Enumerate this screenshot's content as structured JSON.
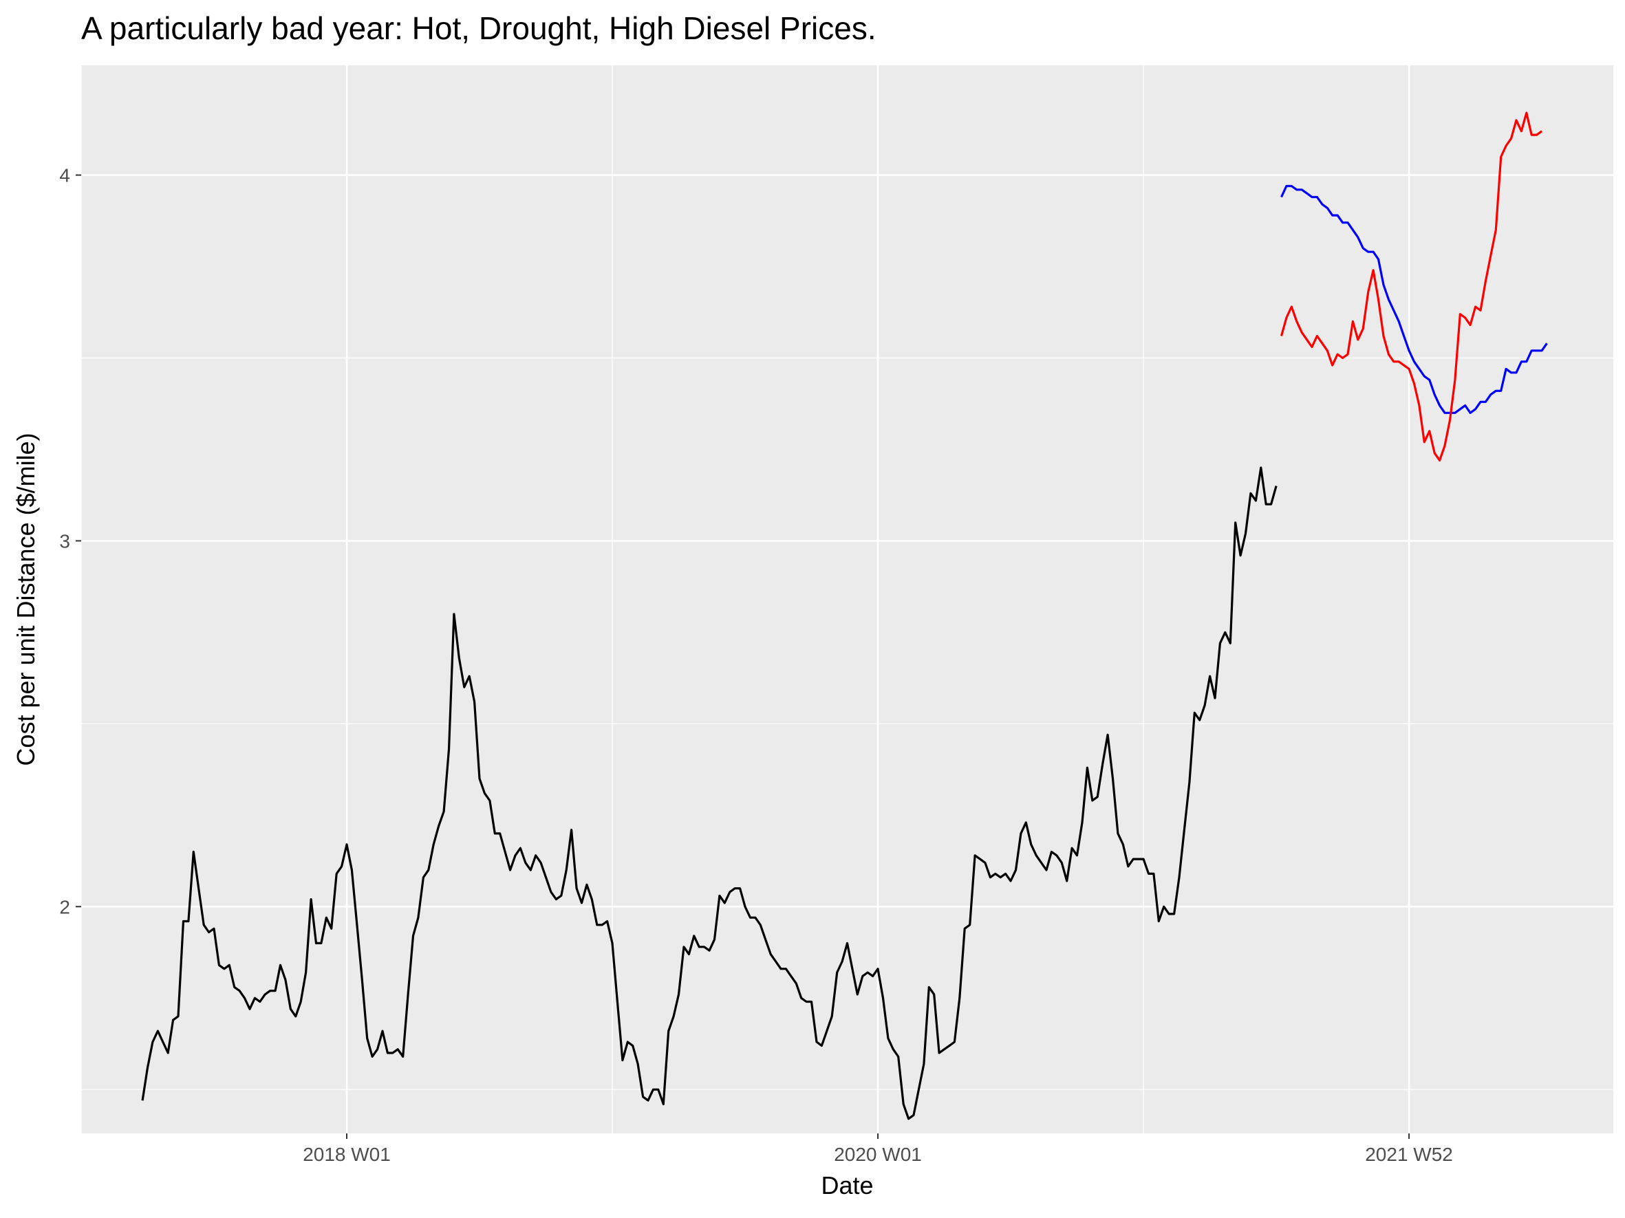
{
  "chart_data": {
    "type": "line",
    "title": "A particularly bad year: Hot, Drought, High Diesel Prices.",
    "xlabel": "Date",
    "ylabel": "Cost per unit Distance ($/mile)",
    "x_tick_labels": [
      "2018 W01",
      "2020 W01",
      "2021 W52"
    ],
    "y_tick_labels": [
      "2",
      "3",
      "4"
    ],
    "x_tick_weeks": [
      0,
      104,
      208
    ],
    "y_ticks": [
      2,
      3,
      4
    ],
    "xlim_weeks": [
      -52,
      248
    ],
    "ylim": [
      1.38,
      4.3
    ],
    "grid": true,
    "legend": "none",
    "x_unit": "ISO week",
    "background": "#ebebeb",
    "gridline_color": "#ffffff",
    "series": [
      {
        "color": "#000000",
        "x_start_week": -40,
        "y": [
          1.47,
          1.56,
          1.63,
          1.66,
          1.63,
          1.6,
          1.69,
          1.7,
          1.96,
          1.96,
          2.15,
          2.05,
          1.95,
          1.93,
          1.94,
          1.84,
          1.83,
          1.84,
          1.78,
          1.77,
          1.75,
          1.72,
          1.75,
          1.74,
          1.76,
          1.77,
          1.77,
          1.84,
          1.8,
          1.72,
          1.7,
          1.74,
          1.82,
          2.02,
          1.9,
          1.9,
          1.97,
          1.94,
          2.09,
          2.11,
          2.17,
          2.1,
          1.95,
          1.8,
          1.64,
          1.59,
          1.61,
          1.66,
          1.6,
          1.6,
          1.61,
          1.59,
          1.76,
          1.92,
          1.97,
          2.08,
          2.1,
          2.17,
          2.22,
          2.26,
          2.43,
          2.8,
          2.68,
          2.6,
          2.63,
          2.56,
          2.35,
          2.31,
          2.29,
          2.2,
          2.2,
          2.15,
          2.1,
          2.14,
          2.16,
          2.12,
          2.1,
          2.14,
          2.12,
          2.08,
          2.04,
          2.02,
          2.03,
          2.1,
          2.21,
          2.05,
          2.01,
          2.06,
          2.02,
          1.95,
          1.95,
          1.96,
          1.9,
          1.74,
          1.58,
          1.63,
          1.62,
          1.57,
          1.48,
          1.47,
          1.5,
          1.5,
          1.46,
          1.66,
          1.7,
          1.76,
          1.89,
          1.87,
          1.92,
          1.89,
          1.89,
          1.88,
          1.91,
          2.03,
          2.01,
          2.04,
          2.05,
          2.05,
          2.0,
          1.97,
          1.97,
          1.95,
          1.91,
          1.87,
          1.85,
          1.83,
          1.83,
          1.81,
          1.79,
          1.75,
          1.74,
          1.74,
          1.63,
          1.62,
          1.66,
          1.7,
          1.82,
          1.85,
          1.9,
          1.83,
          1.76,
          1.81,
          1.82,
          1.81,
          1.83,
          1.75,
          1.64,
          1.61,
          1.59,
          1.46,
          1.42,
          1.43,
          1.5,
          1.57,
          1.78,
          1.76,
          1.6,
          1.61,
          1.62,
          1.63,
          1.75,
          1.94,
          1.95,
          2.14,
          2.13,
          2.12,
          2.08,
          2.09,
          2.08,
          2.09,
          2.07,
          2.1,
          2.2,
          2.23,
          2.17,
          2.14,
          2.12,
          2.1,
          2.15,
          2.14,
          2.12,
          2.07,
          2.16,
          2.14,
          2.23,
          2.38,
          2.29,
          2.3,
          2.39,
          2.47,
          2.35,
          2.2,
          2.17,
          2.11,
          2.13,
          2.13,
          2.13,
          2.09,
          2.09,
          1.96,
          2.0,
          1.98,
          1.98,
          2.08,
          2.21,
          2.34,
          2.53,
          2.51,
          2.55,
          2.63,
          2.57,
          2.72,
          2.75,
          2.72,
          3.05,
          2.96,
          3.02,
          3.13,
          3.11,
          3.2,
          3.1,
          3.1,
          3.15
        ]
      },
      {
        "color": "#0000ff",
        "x_start_week": 183,
        "y": [
          3.94,
          3.97,
          3.97,
          3.96,
          3.96,
          3.95,
          3.94,
          3.94,
          3.92,
          3.91,
          3.89,
          3.89,
          3.87,
          3.87,
          3.85,
          3.83,
          3.8,
          3.79,
          3.79,
          3.77,
          3.7,
          3.66,
          3.63,
          3.6,
          3.56,
          3.52,
          3.49,
          3.47,
          3.45,
          3.44,
          3.4,
          3.37,
          3.35,
          3.35,
          3.35,
          3.36,
          3.37,
          3.35,
          3.36,
          3.38,
          3.38,
          3.4,
          3.41,
          3.41,
          3.47,
          3.46,
          3.46,
          3.49,
          3.49,
          3.52,
          3.52,
          3.52,
          3.54
        ]
      },
      {
        "color": "#ff0000",
        "x_start_week": 183,
        "y": [
          3.56,
          3.61,
          3.64,
          3.6,
          3.57,
          3.55,
          3.53,
          3.56,
          3.54,
          3.52,
          3.48,
          3.51,
          3.5,
          3.51,
          3.6,
          3.55,
          3.58,
          3.68,
          3.74,
          3.66,
          3.56,
          3.51,
          3.49,
          3.49,
          3.48,
          3.47,
          3.43,
          3.37,
          3.27,
          3.3,
          3.24,
          3.22,
          3.26,
          3.33,
          3.44,
          3.62,
          3.61,
          3.59,
          3.64,
          3.63,
          3.71,
          3.78,
          3.85,
          4.05,
          4.08,
          4.1,
          4.15,
          4.12,
          4.17,
          4.11,
          4.11,
          4.12
        ]
      }
    ]
  }
}
